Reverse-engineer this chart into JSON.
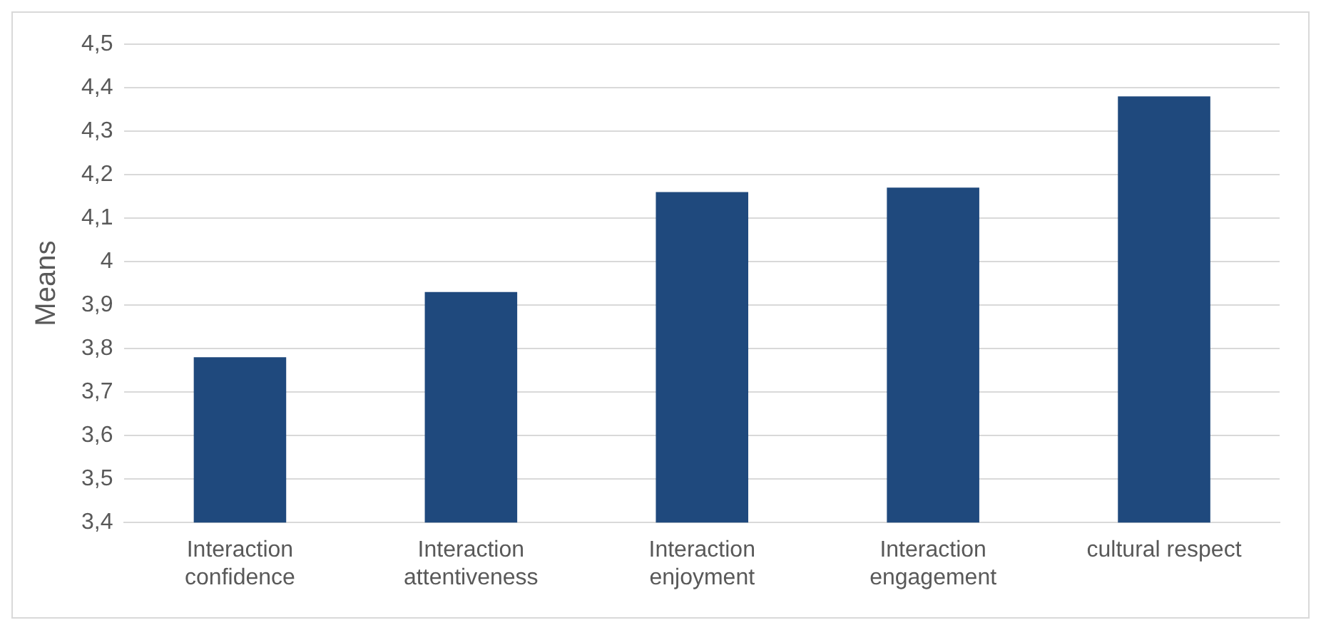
{
  "chart_data": {
    "type": "bar",
    "ylabel": "Means",
    "categories": [
      "Interaction confidence",
      "Interaction attentiveness",
      "Interaction enjoyment",
      "Interaction engagement",
      "cultural respect"
    ],
    "values": [
      3.78,
      3.93,
      4.16,
      4.17,
      4.38
    ],
    "color": "#1f497d",
    "ylim": [
      3.4,
      4.5
    ],
    "yticks": [
      {
        "value": 3.4,
        "label": "3,4"
      },
      {
        "value": 3.5,
        "label": "3,5"
      },
      {
        "value": 3.6,
        "label": "3,6"
      },
      {
        "value": 3.7,
        "label": "3,7"
      },
      {
        "value": 3.8,
        "label": "3,8"
      },
      {
        "value": 3.9,
        "label": "3,9"
      },
      4,
      {
        "value": 4.1,
        "label": "4,1"
      },
      {
        "value": 4.2,
        "label": "4,2"
      },
      {
        "value": 4.3,
        "label": "4,3"
      },
      {
        "value": 4.4,
        "label": "4,4"
      },
      {
        "value": 4.5,
        "label": "4,5"
      }
    ],
    "grid": "y",
    "legend": false
  }
}
